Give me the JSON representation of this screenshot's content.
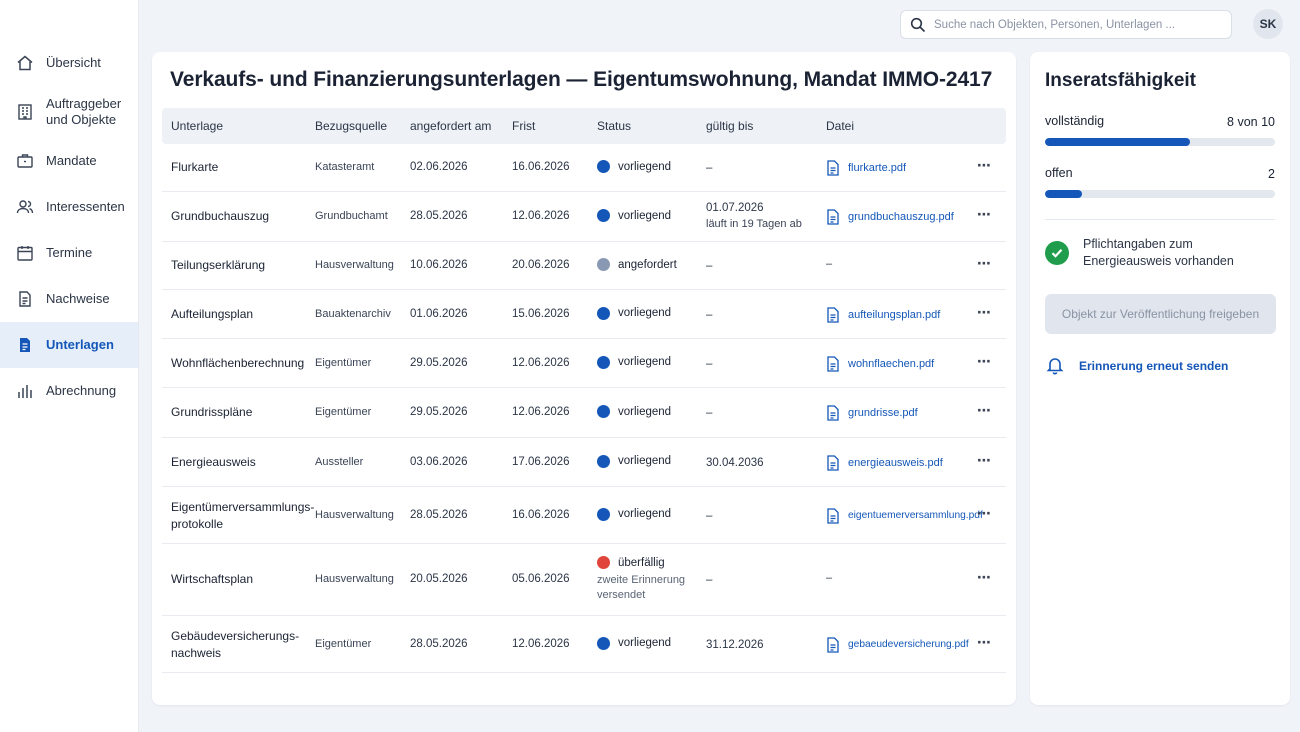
{
  "sidebar": {
    "items": [
      {
        "label": "Übersicht",
        "icon": "home-icon"
      },
      {
        "label": "Auftraggeber und Objekte",
        "icon": "building-icon"
      },
      {
        "label": "Mandate",
        "icon": "briefcase-icon"
      },
      {
        "label": "Interessenten",
        "icon": "users-icon"
      },
      {
        "label": "Termine",
        "icon": "calendar-icon"
      },
      {
        "label": "Nachweise",
        "icon": "document-icon"
      },
      {
        "label": "Unterlagen",
        "icon": "document-filled-icon",
        "active": true
      },
      {
        "label": "Abrechnung",
        "icon": "bar-chart-icon"
      }
    ]
  },
  "search": {
    "placeholder": "Suche nach Objekten, Personen, Unterlagen ..."
  },
  "user": {
    "initials": "SK"
  },
  "main": {
    "title": "Verkaufs- und Finanzierungsunterlagen — Eigentumswohnung, Mandat IMMO-2417",
    "columns": [
      "Unterlage",
      "Bezugsquelle",
      "angefordert am",
      "Frist",
      "Status",
      "gültig bis",
      "Datei"
    ],
    "rows": [
      {
        "name": "Flurkarte",
        "source": "Katasteramt",
        "requested": "02.06.2026",
        "due": "16.06.2026",
        "status": "vorliegend",
        "status_color": "#1457b8",
        "status_note": "",
        "valid": "–",
        "valid_note": "",
        "file": "flurkarte.pdf"
      },
      {
        "name": "Grundbuchauszug",
        "source": "Grundbuchamt",
        "requested": "28.05.2026",
        "due": "12.06.2026",
        "status": "vorliegend",
        "status_color": "#1457b8",
        "status_note": "",
        "valid": "01.07.2026",
        "valid_note": "läuft in 19 Tagen ab",
        "file": "grundbuchauszug.pdf"
      },
      {
        "name": "Teilungserklärung",
        "source": "Hausverwaltung",
        "requested": "10.06.2026",
        "due": "20.06.2026",
        "status": "angefordert",
        "status_color": "#8a99b3",
        "status_note": "",
        "valid": "–",
        "valid_note": "",
        "file": "–"
      },
      {
        "name": "Aufteilungsplan",
        "source": "Bauaktenarchiv",
        "requested": "01.06.2026",
        "due": "15.06.2026",
        "status": "vorliegend",
        "status_color": "#1457b8",
        "status_note": "",
        "valid": "–",
        "valid_note": "",
        "file": "aufteilungsplan.pdf"
      },
      {
        "name": "Wohnflächenberechnung",
        "source": "Eigentümer",
        "requested": "29.05.2026",
        "due": "12.06.2026",
        "status": "vorliegend",
        "status_color": "#1457b8",
        "status_note": "",
        "valid": "–",
        "valid_note": "",
        "file": "wohnflaechen.pdf"
      },
      {
        "name": "Grundrisspläne",
        "source": "Eigentümer",
        "requested": "29.05.2026",
        "due": "12.06.2026",
        "status": "vorliegend",
        "status_color": "#1457b8",
        "status_note": "",
        "valid": "–",
        "valid_note": "",
        "file": "grundrisse.pdf"
      },
      {
        "name": "Energieausweis",
        "source": "Aussteller",
        "requested": "03.06.2026",
        "due": "17.06.2026",
        "status": "vorliegend",
        "status_color": "#1457b8",
        "status_note": "",
        "valid": "30.04.2036",
        "valid_note": "",
        "file": "energieausweis.pdf"
      },
      {
        "name": "Eigentümerversammlungs-protokolle",
        "source": "Hausverwaltung",
        "requested": "28.05.2026",
        "due": "16.06.2026",
        "status": "vorliegend",
        "status_color": "#1457b8",
        "status_note": "",
        "valid": "–",
        "valid_note": "",
        "file": "eigentuemerversammlung.pdf"
      },
      {
        "name": "Wirtschaftsplan",
        "source": "Hausverwaltung",
        "requested": "20.05.2026",
        "due": "05.06.2026",
        "status": "überfällig",
        "status_color": "#e0453b",
        "status_note": "zweite Erinnerung versendet",
        "valid": "–",
        "valid_note": "",
        "file": "–"
      },
      {
        "name": "Gebäudeversicherungs-nachweis",
        "source": "Eigentümer",
        "requested": "28.05.2026",
        "due": "12.06.2026",
        "status": "vorliegend",
        "status_color": "#1457b8",
        "status_note": "",
        "valid": "31.12.2026",
        "valid_note": "",
        "file": "gebaeudeversicherung.pdf"
      }
    ]
  },
  "side": {
    "title": "Inseratsfähigkeit",
    "complete_label": "vollständig",
    "complete_value": "8 von 10",
    "complete_fraction": 0.63,
    "open_label": "offen",
    "open_value": "2",
    "open_fraction": 0.16,
    "check_text": "Pflichtangaben zum Energieausweis vorhanden",
    "publish_label": "Objekt zur Veröffentlichung freigeben",
    "remind_label": "Erinnerung erneut senden"
  }
}
